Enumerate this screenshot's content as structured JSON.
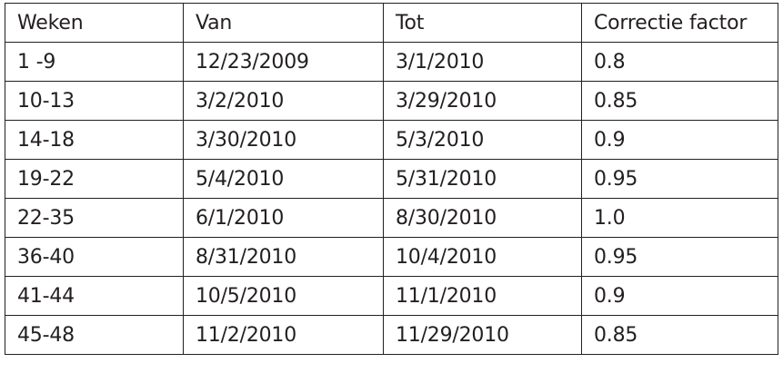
{
  "table": {
    "headers": [
      "Weken",
      "Van",
      "Tot",
      "Correctie factor"
    ],
    "rows": [
      [
        "1 -9",
        "12/23/2009",
        "3/1/2010",
        "0.8"
      ],
      [
        "10-13",
        "3/2/2010",
        "3/29/2010",
        "0.85"
      ],
      [
        "14-18",
        "3/30/2010",
        "5/3/2010",
        "0.9"
      ],
      [
        "19-22",
        "5/4/2010",
        "5/31/2010",
        "0.95"
      ],
      [
        "22-35",
        "6/1/2010",
        "8/30/2010",
        "1.0"
      ],
      [
        "36-40",
        "8/31/2010",
        "10/4/2010",
        "0.95"
      ],
      [
        "41-44",
        "10/5/2010",
        "11/1/2010",
        "0.9"
      ],
      [
        "45-48",
        "11/2/2010",
        "11/29/2010",
        "0.85"
      ]
    ]
  }
}
